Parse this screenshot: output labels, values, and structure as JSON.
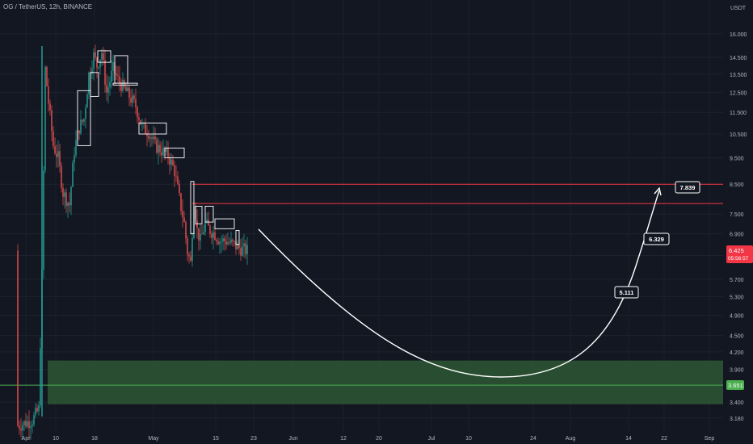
{
  "header": {
    "title": "OG / TetherUS, 12h, BINANCE"
  },
  "chart_data": {
    "type": "candlestick",
    "symbol": "OG / TetherUS",
    "interval": "12h",
    "exchange": "BINANCE",
    "y_unit": "USDT",
    "y_scale": "log",
    "ylim": [
      3.0,
      18.2
    ],
    "y_ticks": [
      "16.000",
      "14.500",
      "13.500",
      "12.500",
      "11.500",
      "10.500",
      "9.500",
      "8.500",
      "7.500",
      "6.900",
      "6.300",
      "5.700",
      "5.300",
      "4.900",
      "4.500",
      "4.200",
      "3.900",
      "3.651",
      "3.400",
      "3.180"
    ],
    "x_ticks": [
      "Apr",
      "10",
      "18",
      "May",
      "15",
      "23",
      "Jun",
      "12",
      "20",
      "Jul",
      "10",
      "24",
      "Aug",
      "14",
      "22",
      "Sep"
    ],
    "price_badge": {
      "value": "6.425",
      "countdown": "05:56:57",
      "color": "#f23645"
    },
    "support_badge": {
      "value": "3.651",
      "color": "#4caf50"
    },
    "resistance_lines": [
      8.5,
      7.839
    ],
    "support_zone": {
      "top": 4.05,
      "bottom": 3.37,
      "line": 3.651
    },
    "targets": [
      "5.111",
      "6.329",
      "7.839"
    ],
    "colors": {
      "up": "#26a69a",
      "down": "#ef5350",
      "background": "#131722",
      "resistance": "#f23645",
      "zone": "#2e5b35",
      "projection": "#ffffff"
    }
  }
}
